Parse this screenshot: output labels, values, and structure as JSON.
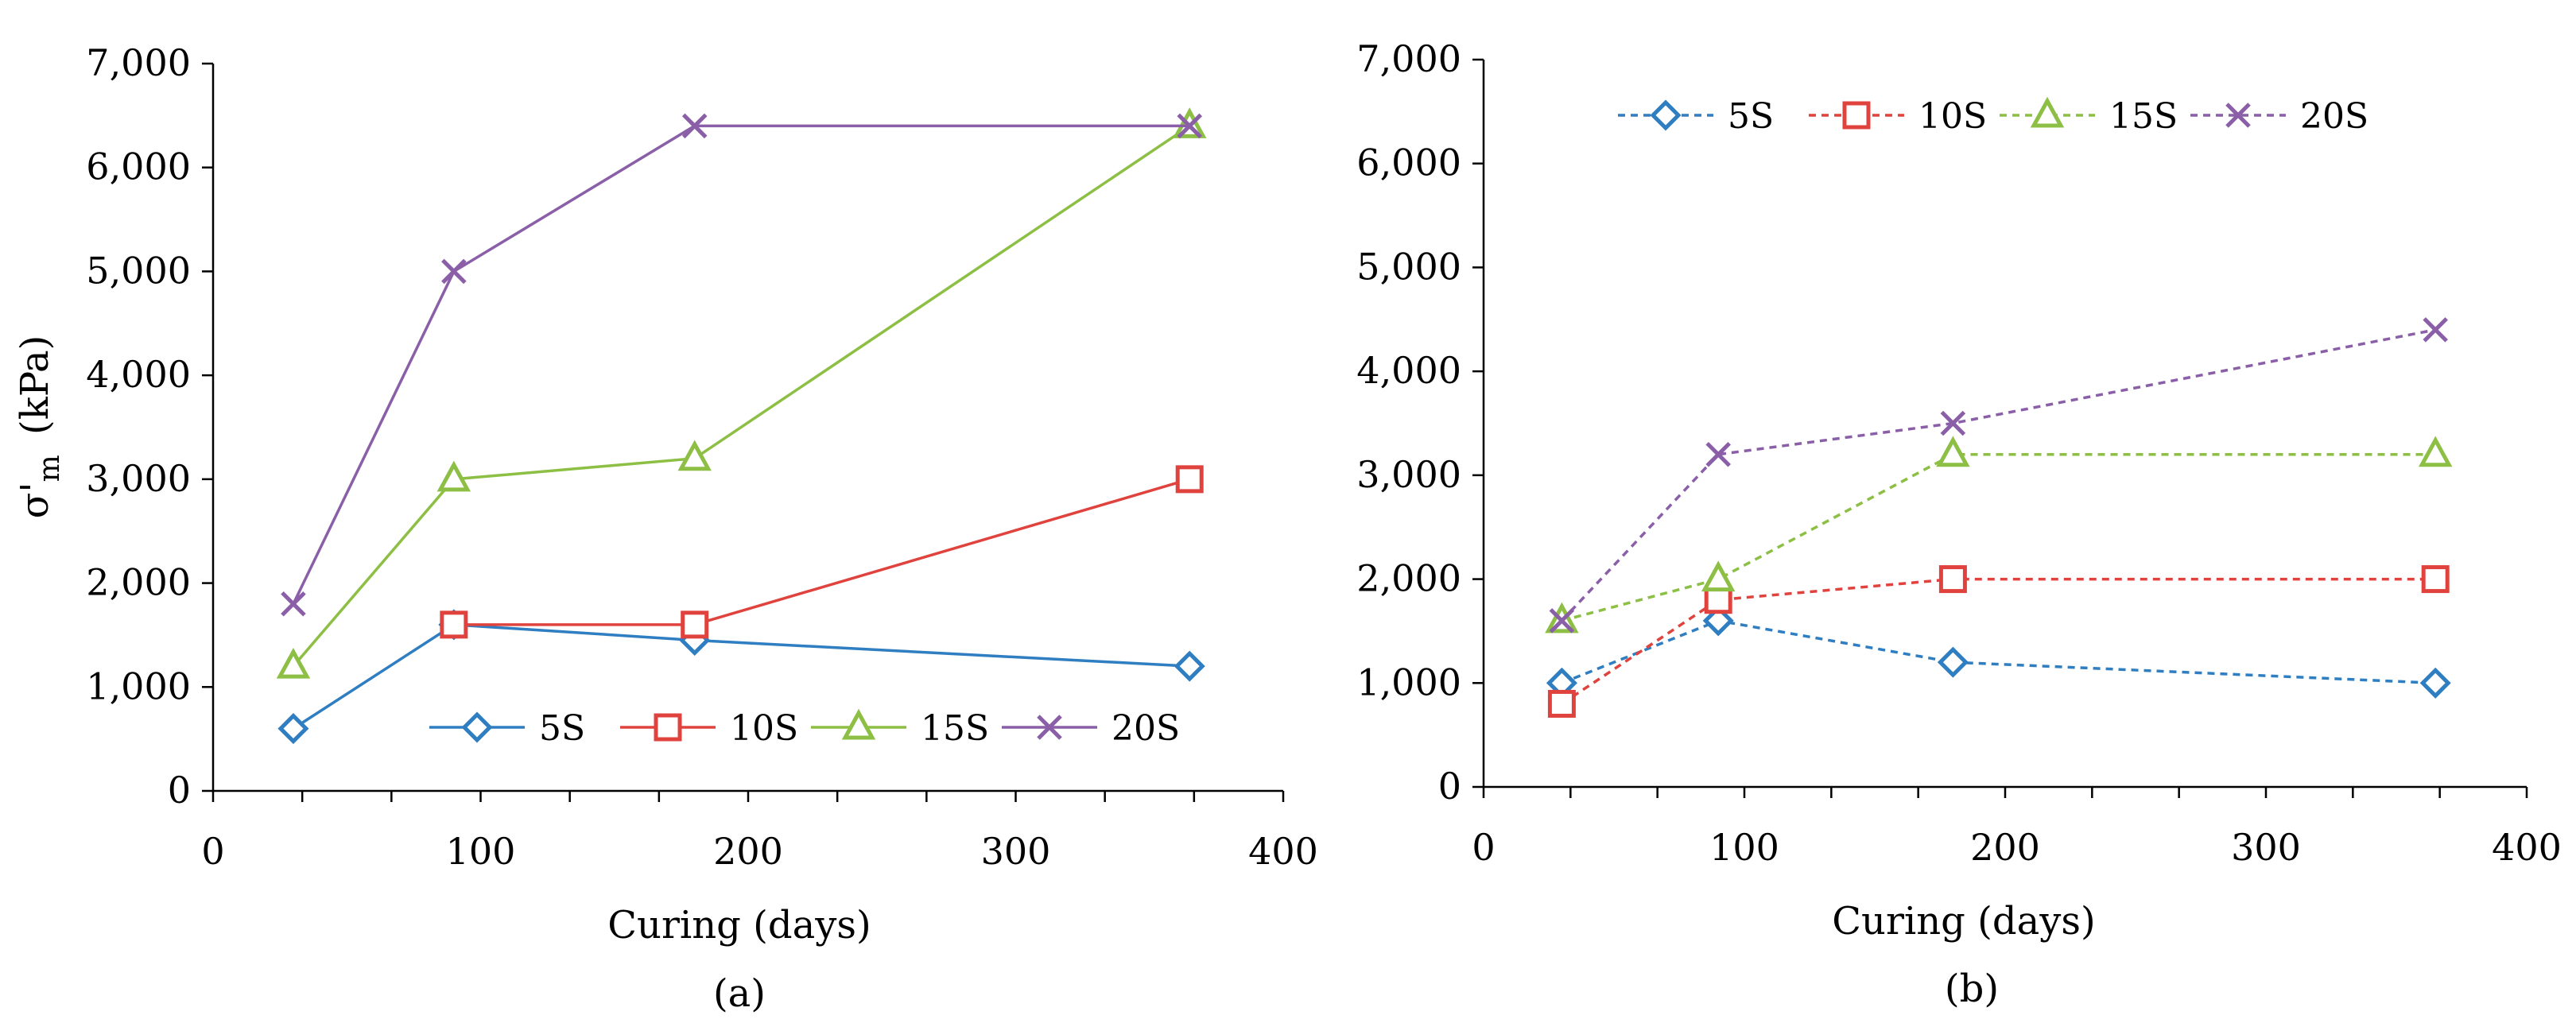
{
  "chart_data": [
    {
      "type": "line",
      "panel_label": "(a)",
      "xlabel": "Curing (days)",
      "ylabel_symbol": "σ'",
      "ylabel_subscript": "m",
      "ylabel_unit": "(kPa)",
      "xlim": [
        0,
        400
      ],
      "ylim": [
        0,
        7000
      ],
      "xticks": [
        0,
        100,
        200,
        300,
        400
      ],
      "xtick_labels": [
        "0",
        "100",
        "200",
        "300",
        "400"
      ],
      "yticks": [
        0,
        1000,
        2000,
        3000,
        4000,
        5000,
        6000,
        7000
      ],
      "ytick_labels": [
        "0",
        "1,000",
        "2,000",
        "3,000",
        "4,000",
        "5,000",
        "6,000",
        "7,000"
      ],
      "line_style": "solid",
      "legend_position": "bottom",
      "x": [
        30,
        90,
        180,
        365
      ],
      "series": [
        {
          "name": "5S",
          "marker": "diamond",
          "color": "#2E7EC1",
          "values": [
            600,
            1600,
            1450,
            1200
          ]
        },
        {
          "name": "10S",
          "marker": "square",
          "color": "#E0433E",
          "values": [
            null,
            1600,
            1600,
            3000
          ]
        },
        {
          "name": "15S",
          "marker": "triangle",
          "color": "#8CBF44",
          "values": [
            1200,
            3000,
            3200,
            6400
          ]
        },
        {
          "name": "20S",
          "marker": "cross",
          "color": "#8A5FA8",
          "values": [
            1800,
            5000,
            6400,
            6400
          ]
        }
      ]
    },
    {
      "type": "line",
      "panel_label": "(b)",
      "xlabel": "Curing (days)",
      "xlim": [
        0,
        400
      ],
      "ylim": [
        0,
        7000
      ],
      "xticks": [
        0,
        100,
        200,
        300,
        400
      ],
      "xtick_labels": [
        "0",
        "100",
        "200",
        "300",
        "400"
      ],
      "yticks": [
        0,
        1000,
        2000,
        3000,
        4000,
        5000,
        6000,
        7000
      ],
      "ytick_labels": [
        "0",
        "1,000",
        "2,000",
        "3,000",
        "4,000",
        "5,000",
        "6,000",
        "7,000"
      ],
      "line_style": "dashed",
      "legend_position": "top",
      "x": [
        30,
        90,
        180,
        365
      ],
      "series": [
        {
          "name": "5S",
          "marker": "diamond",
          "color": "#2E7EC1",
          "values": [
            1000,
            1600,
            1200,
            1000
          ]
        },
        {
          "name": "10S",
          "marker": "square",
          "color": "#E0433E",
          "values": [
            800,
            1800,
            2000,
            2000
          ]
        },
        {
          "name": "15S",
          "marker": "triangle",
          "color": "#8CBF44",
          "values": [
            1600,
            2000,
            3200,
            3200
          ]
        },
        {
          "name": "20S",
          "marker": "cross",
          "color": "#8A5FA8",
          "values": [
            1600,
            3200,
            3500,
            4400
          ]
        }
      ]
    }
  ]
}
